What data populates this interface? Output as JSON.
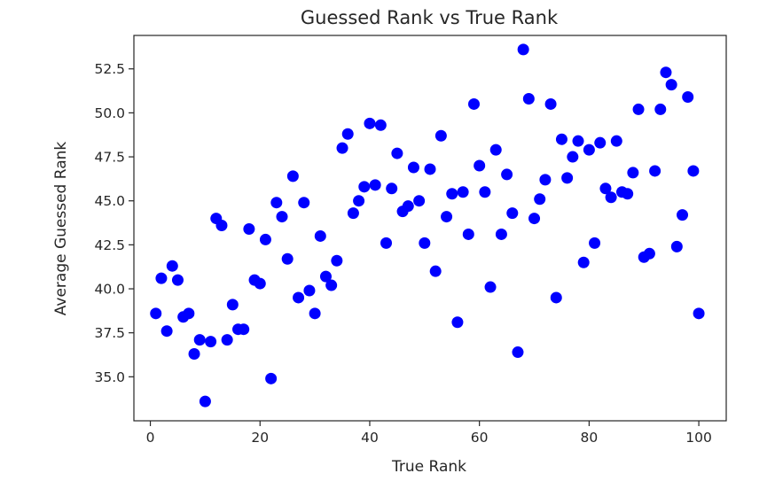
{
  "chart_data": {
    "type": "scatter",
    "title": "Guessed Rank vs True Rank",
    "xlabel": "True Rank",
    "ylabel": "Average Guessed Rank",
    "xlim": [
      -3,
      105
    ],
    "ylim": [
      32.5,
      54.4
    ],
    "xticks": [
      0,
      20,
      40,
      60,
      80,
      100
    ],
    "xtick_labels": [
      "0",
      "20",
      "40",
      "60",
      "80",
      "100"
    ],
    "yticks": [
      35.0,
      37.5,
      40.0,
      42.5,
      45.0,
      47.5,
      50.0,
      52.5
    ],
    "ytick_labels": [
      "35.0",
      "37.5",
      "40.0",
      "42.5",
      "45.0",
      "47.5",
      "50.0",
      "52.5"
    ],
    "grid": false,
    "color": "#0000ff",
    "points": [
      [
        1,
        38.6
      ],
      [
        2,
        40.6
      ],
      [
        3,
        37.6
      ],
      [
        4,
        41.3
      ],
      [
        5,
        40.5
      ],
      [
        6,
        38.4
      ],
      [
        7,
        38.6
      ],
      [
        8,
        36.3
      ],
      [
        9,
        37.1
      ],
      [
        10,
        33.6
      ],
      [
        11,
        37.0
      ],
      [
        12,
        44.0
      ],
      [
        13,
        43.6
      ],
      [
        14,
        37.1
      ],
      [
        15,
        39.1
      ],
      [
        16,
        37.7
      ],
      [
        17,
        37.7
      ],
      [
        18,
        43.4
      ],
      [
        19,
        40.5
      ],
      [
        20,
        40.3
      ],
      [
        21,
        42.8
      ],
      [
        22,
        34.9
      ],
      [
        23,
        44.9
      ],
      [
        24,
        44.1
      ],
      [
        25,
        41.7
      ],
      [
        26,
        46.4
      ],
      [
        27,
        39.5
      ],
      [
        28,
        44.9
      ],
      [
        29,
        39.9
      ],
      [
        30,
        38.6
      ],
      [
        31,
        43.0
      ],
      [
        32,
        40.7
      ],
      [
        33,
        40.2
      ],
      [
        34,
        41.6
      ],
      [
        35,
        48.0
      ],
      [
        36,
        48.8
      ],
      [
        37,
        44.3
      ],
      [
        38,
        45.0
      ],
      [
        39,
        45.8
      ],
      [
        40,
        49.4
      ],
      [
        41,
        45.9
      ],
      [
        42,
        49.3
      ],
      [
        43,
        42.6
      ],
      [
        44,
        45.7
      ],
      [
        45,
        47.7
      ],
      [
        46,
        44.4
      ],
      [
        47,
        44.7
      ],
      [
        48,
        46.9
      ],
      [
        49,
        45.0
      ],
      [
        50,
        42.6
      ],
      [
        51,
        46.8
      ],
      [
        52,
        41.0
      ],
      [
        53,
        48.7
      ],
      [
        54,
        44.1
      ],
      [
        55,
        45.4
      ],
      [
        56,
        38.1
      ],
      [
        57,
        45.5
      ],
      [
        58,
        43.1
      ],
      [
        59,
        50.5
      ],
      [
        60,
        47.0
      ],
      [
        61,
        45.5
      ],
      [
        62,
        40.1
      ],
      [
        63,
        47.9
      ],
      [
        64,
        43.1
      ],
      [
        65,
        46.5
      ],
      [
        66,
        44.3
      ],
      [
        67,
        36.4
      ],
      [
        68,
        53.6
      ],
      [
        69,
        50.8
      ],
      [
        70,
        44.0
      ],
      [
        71,
        45.1
      ],
      [
        72,
        46.2
      ],
      [
        73,
        50.5
      ],
      [
        74,
        39.5
      ],
      [
        75,
        48.5
      ],
      [
        76,
        46.3
      ],
      [
        77,
        47.5
      ],
      [
        78,
        48.4
      ],
      [
        79,
        41.5
      ],
      [
        80,
        47.9
      ],
      [
        81,
        42.6
      ],
      [
        82,
        48.3
      ],
      [
        83,
        45.7
      ],
      [
        84,
        45.2
      ],
      [
        85,
        48.4
      ],
      [
        86,
        45.5
      ],
      [
        87,
        45.4
      ],
      [
        88,
        46.6
      ],
      [
        89,
        50.2
      ],
      [
        90,
        41.8
      ],
      [
        91,
        42.0
      ],
      [
        92,
        46.7
      ],
      [
        93,
        50.2
      ],
      [
        94,
        52.3
      ],
      [
        95,
        51.6
      ],
      [
        96,
        42.4
      ],
      [
        97,
        44.2
      ],
      [
        98,
        50.9
      ],
      [
        99,
        46.7
      ],
      [
        100,
        38.6
      ]
    ]
  }
}
